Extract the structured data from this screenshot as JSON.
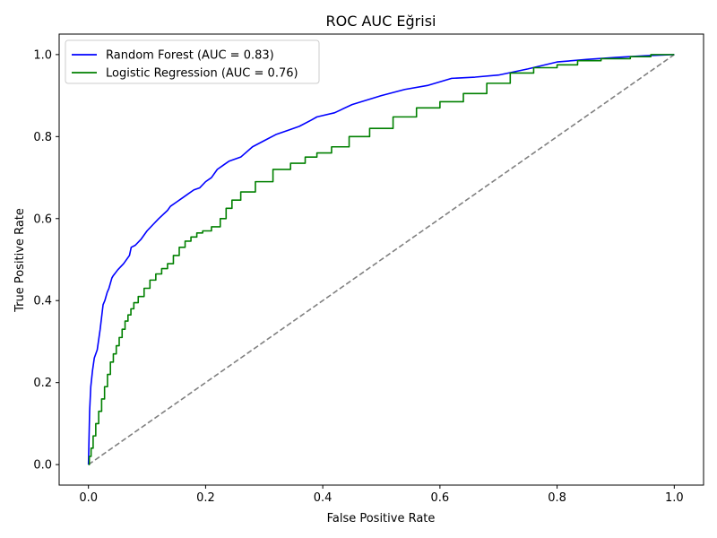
{
  "chart_data": {
    "type": "line",
    "title": "ROC AUC Eğrisi",
    "xlabel": "False Positive Rate",
    "ylabel": "True Positive Rate",
    "xlim": [
      -0.05,
      1.05
    ],
    "ylim": [
      -0.05,
      1.05
    ],
    "xticks": [
      "0.0",
      "0.2",
      "0.4",
      "0.6",
      "0.8",
      "1.0"
    ],
    "yticks": [
      "0.0",
      "0.2",
      "0.4",
      "0.6",
      "0.8",
      "1.0"
    ],
    "grid": false,
    "legend_position": "upper left",
    "series": [
      {
        "name": "Random Forest (AUC = 0.83)",
        "color": "#0000ff",
        "style": "solid",
        "x": [
          0.0,
          0.002,
          0.004,
          0.007,
          0.01,
          0.015,
          0.02,
          0.025,
          0.028,
          0.032,
          0.035,
          0.04,
          0.042,
          0.05,
          0.06,
          0.07,
          0.073,
          0.08,
          0.09,
          0.1,
          0.11,
          0.12,
          0.135,
          0.14,
          0.15,
          0.16,
          0.17,
          0.18,
          0.19,
          0.2,
          0.21,
          0.22,
          0.23,
          0.24,
          0.26,
          0.28,
          0.3,
          0.32,
          0.34,
          0.36,
          0.38,
          0.39,
          0.42,
          0.45,
          0.5,
          0.54,
          0.58,
          0.62,
          0.66,
          0.7,
          0.75,
          0.8,
          0.85,
          0.9,
          0.95,
          1.0
        ],
        "y": [
          0.0,
          0.13,
          0.19,
          0.23,
          0.26,
          0.28,
          0.33,
          0.39,
          0.4,
          0.42,
          0.43,
          0.455,
          0.46,
          0.475,
          0.49,
          0.51,
          0.53,
          0.535,
          0.55,
          0.57,
          0.585,
          0.6,
          0.62,
          0.63,
          0.64,
          0.65,
          0.66,
          0.67,
          0.675,
          0.69,
          0.7,
          0.72,
          0.73,
          0.74,
          0.75,
          0.775,
          0.79,
          0.805,
          0.815,
          0.825,
          0.84,
          0.848,
          0.858,
          0.878,
          0.9,
          0.915,
          0.925,
          0.942,
          0.945,
          0.95,
          0.965,
          0.982,
          0.988,
          0.993,
          0.997,
          1.0
        ]
      },
      {
        "name": "Logistic Regression (AUC = 0.76)",
        "color": "#008000",
        "style": "step",
        "x": [
          0.0,
          0.003,
          0.006,
          0.01,
          0.015,
          0.02,
          0.025,
          0.03,
          0.035,
          0.04,
          0.045,
          0.05,
          0.055,
          0.06,
          0.065,
          0.07,
          0.075,
          0.08,
          0.09,
          0.1,
          0.11,
          0.12,
          0.13,
          0.14,
          0.15,
          0.16,
          0.17,
          0.18,
          0.19,
          0.2,
          0.22,
          0.23,
          0.24,
          0.25,
          0.27,
          0.3,
          0.33,
          0.36,
          0.38,
          0.4,
          0.43,
          0.46,
          0.5,
          0.54,
          0.58,
          0.62,
          0.66,
          0.7,
          0.74,
          0.78,
          0.82,
          0.85,
          0.9,
          0.95,
          0.97,
          1.0
        ],
        "y": [
          0.0,
          0.02,
          0.04,
          0.07,
          0.1,
          0.13,
          0.16,
          0.19,
          0.22,
          0.25,
          0.27,
          0.29,
          0.31,
          0.33,
          0.35,
          0.365,
          0.38,
          0.395,
          0.41,
          0.43,
          0.45,
          0.465,
          0.478,
          0.49,
          0.51,
          0.53,
          0.545,
          0.555,
          0.565,
          0.57,
          0.58,
          0.6,
          0.625,
          0.645,
          0.665,
          0.69,
          0.72,
          0.735,
          0.75,
          0.76,
          0.775,
          0.8,
          0.82,
          0.848,
          0.87,
          0.885,
          0.905,
          0.93,
          0.955,
          0.968,
          0.975,
          0.985,
          0.99,
          0.995,
          1.0,
          1.0
        ]
      }
    ],
    "reference_line": {
      "x": [
        0,
        1
      ],
      "y": [
        0,
        1
      ],
      "color": "#808080",
      "style": "dashed"
    }
  }
}
